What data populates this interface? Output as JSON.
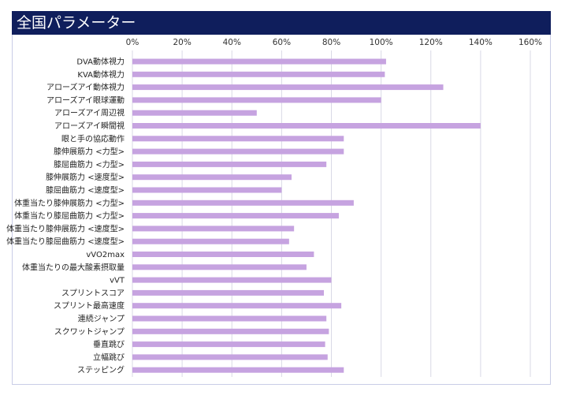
{
  "header": {
    "title": "全国パラメーター"
  },
  "colors": {
    "header_bg": "#0f1e5c",
    "bar": "#c6a3e0",
    "grid": "#d9d9e6"
  },
  "chart_data": {
    "type": "bar",
    "orientation": "horizontal",
    "categories": [
      "DVA動体視力",
      "KVA動体視力",
      "アローズアイ動体視力",
      "アローズアイ眼球運動",
      "アローズアイ周辺視",
      "アローズアイ瞬間視",
      "眼と手の協応動作",
      "膝伸展筋力 <力型>",
      "膝屈曲筋力 <力型>",
      "膝伸展筋力 <速度型>",
      "膝屈曲筋力 <速度型>",
      "体重当たり膝伸展筋力 <力型>",
      "体重当たり膝屈曲筋力 <力型>",
      "体重当たり膝伸展筋力 <速度型>",
      "体重当たり膝屈曲筋力 <速度型>",
      "vVO2max",
      "体重当たりの最大酸素摂取量",
      "vVT",
      "スプリントスコア",
      "スプリント最高速度",
      "連続ジャンプ",
      "スクワットジャンプ",
      "垂直跳び",
      "立幅跳び",
      "ステッピング"
    ],
    "values": [
      102,
      101.5,
      125,
      100,
      50,
      140,
      85,
      85,
      78,
      64,
      60,
      89,
      83,
      65,
      63,
      73,
      70,
      80,
      77,
      84,
      78,
      79,
      77.5,
      78.5,
      85
    ],
    "xlim": [
      0,
      160
    ],
    "ticks": [
      0,
      20,
      40,
      60,
      80,
      100,
      120,
      140,
      160
    ],
    "tick_labels": [
      "0%",
      "20%",
      "40%",
      "60%",
      "80%",
      "100%",
      "120%",
      "140%",
      "160%"
    ],
    "xaxis_position": "top",
    "grid": true,
    "legend": "none"
  }
}
